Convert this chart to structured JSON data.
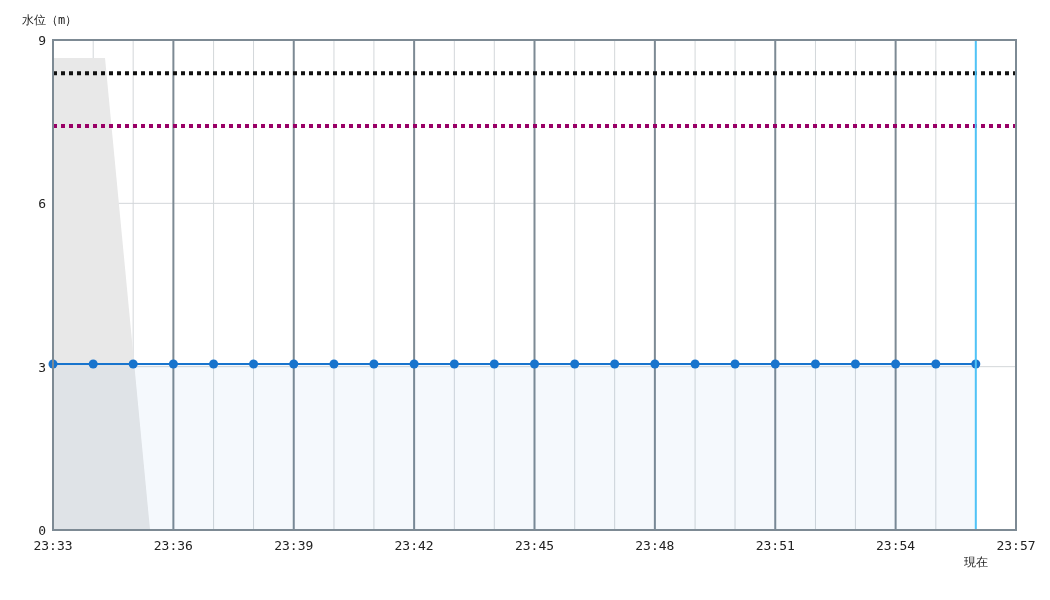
{
  "chart_data": {
    "type": "area",
    "ylabel": "水位（m）",
    "xlim": [
      23.55,
      23.95
    ],
    "ylim": [
      0,
      9
    ],
    "yticks": [
      0,
      3,
      6,
      9
    ],
    "xticks": [
      {
        "value": 23.55,
        "label": "23:33"
      },
      {
        "value": 23.5667,
        "label": null
      },
      {
        "value": 23.5833,
        "label": null
      },
      {
        "value": 23.6,
        "label": "23:36"
      },
      {
        "value": 23.6167,
        "label": null
      },
      {
        "value": 23.6333,
        "label": null
      },
      {
        "value": 23.65,
        "label": "23:39"
      },
      {
        "value": 23.6667,
        "label": null
      },
      {
        "value": 23.6833,
        "label": null
      },
      {
        "value": 23.7,
        "label": "23:42"
      },
      {
        "value": 23.7167,
        "label": null
      },
      {
        "value": 23.7333,
        "label": null
      },
      {
        "value": 23.75,
        "label": "23:45"
      },
      {
        "value": 23.7667,
        "label": null
      },
      {
        "value": 23.7833,
        "label": null
      },
      {
        "value": 23.8,
        "label": "23:48"
      },
      {
        "value": 23.8167,
        "label": null
      },
      {
        "value": 23.8333,
        "label": null
      },
      {
        "value": 23.85,
        "label": "23:51"
      },
      {
        "value": 23.8667,
        "label": null
      },
      {
        "value": 23.8833,
        "label": null
      },
      {
        "value": 23.9,
        "label": "23:54"
      },
      {
        "value": 23.9167,
        "label": null
      },
      {
        "value": 23.9333,
        "label": null
      },
      {
        "value": 23.95,
        "label": "23:57"
      }
    ],
    "grid": true,
    "series": [
      {
        "color": "#e8e8e8",
        "marker": "none",
        "x": [
          23.55,
          23.5716,
          23.5903
        ],
        "values": [
          8.67,
          8.67,
          0
        ]
      },
      {
        "color": "#1874cd",
        "marker": "circle",
        "x": [
          23.55,
          23.5667,
          23.5833,
          23.6,
          23.6167,
          23.6333,
          23.65,
          23.6667,
          23.6833,
          23.7,
          23.7167,
          23.7333,
          23.75,
          23.7667,
          23.7833,
          23.8,
          23.8167,
          23.8333,
          23.85,
          23.8667,
          23.8833,
          23.9,
          23.9167,
          23.9333
        ],
        "values": [
          3.05,
          3.05,
          3.05,
          3.05,
          3.05,
          3.05,
          3.05,
          3.05,
          3.05,
          3.05,
          3.05,
          3.05,
          3.05,
          3.05,
          3.05,
          3.05,
          3.05,
          3.05,
          3.05,
          3.05,
          3.05,
          3.05,
          3.05,
          3.05
        ]
      }
    ],
    "ref_lines": [
      {
        "axis": "y",
        "value": 8.39,
        "color": "#111111",
        "line_style": "dotted"
      },
      {
        "axis": "y",
        "value": 7.42,
        "color": "#990066",
        "line_style": "dotted"
      },
      {
        "axis": "x",
        "value": 23.9333,
        "color": "#4fc3f7",
        "line_style": "solid",
        "label": "現在"
      }
    ]
  }
}
